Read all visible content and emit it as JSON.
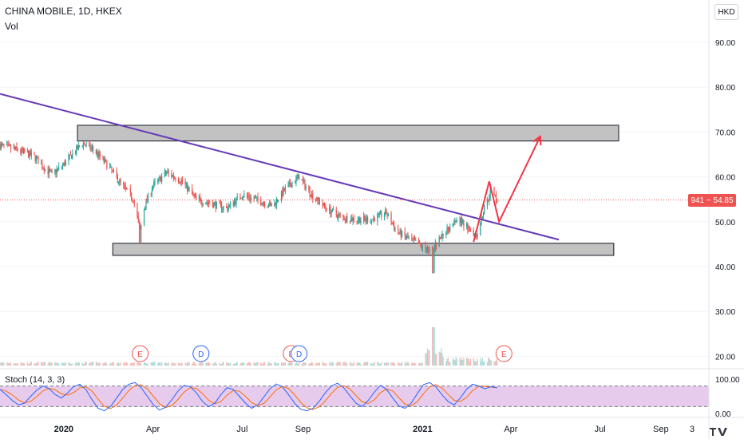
{
  "header": {
    "symbol_line": "CHINA MOBILE, 1D, HKEX",
    "volume_label": "Vol",
    "currency_button": "HKD",
    "indicator_label": "Stoch (14, 3, 3)"
  },
  "price_badge": {
    "text": "941 − 54.85",
    "color": "#ef5350"
  },
  "colors": {
    "up": "#26a69a",
    "down": "#ef5350",
    "trendline": "#673ab7",
    "projection": "#f23645",
    "zone_fill": "#c2c2c2",
    "stoch_k": "#2962ff",
    "stoch_d": "#ff6d00",
    "stoch_band": "#e1bee7"
  },
  "chart_data": {
    "type": "candlestick",
    "symbol": "CHINA MOBILE",
    "interval": "1D",
    "exchange": "HKEX",
    "currency": "HKD",
    "last_price": 54.85,
    "price_axis": {
      "ticks": [
        90,
        80,
        70,
        60,
        50,
        40,
        30,
        20
      ],
      "tick_labels": [
        "90.00",
        "80.00",
        "70.00",
        "60.00",
        "50.00",
        "40.00",
        "30.00",
        "20.00"
      ]
    },
    "time_axis": {
      "labels": [
        "2020",
        "Apr",
        "Jul",
        "Sep",
        "2021",
        "Apr",
        "Jul",
        "Sep",
        "3"
      ],
      "dates": [
        "2020-01-01",
        "2020-04-01",
        "2020-07-01",
        "2020-09-01",
        "2021-01-01",
        "2021-04-01",
        "2021-07-01",
        "2021-09-01",
        "2021-10-03"
      ]
    },
    "price_path": [
      [
        "2019-10-28",
        67.0
      ],
      [
        "2019-11-15",
        66.0
      ],
      [
        "2019-12-02",
        64.5
      ],
      [
        "2019-12-12",
        62.0
      ],
      [
        "2019-12-20",
        60.5
      ],
      [
        "2020-01-02",
        63.0
      ],
      [
        "2020-01-10",
        65.0
      ],
      [
        "2020-01-20",
        67.5
      ],
      [
        "2020-02-01",
        66.0
      ],
      [
        "2020-02-15",
        62.5
      ],
      [
        "2020-03-01",
        58.0
      ],
      [
        "2020-03-12",
        55.0
      ],
      [
        "2020-03-19",
        48.0
      ],
      [
        "2020-03-24",
        54.0
      ],
      [
        "2020-04-01",
        58.0
      ],
      [
        "2020-04-15",
        61.0
      ],
      [
        "2020-05-01",
        59.0
      ],
      [
        "2020-05-15",
        55.0
      ],
      [
        "2020-06-01",
        54.0
      ],
      [
        "2020-06-15",
        53.0
      ],
      [
        "2020-07-01",
        56.0
      ],
      [
        "2020-07-15",
        55.0
      ],
      [
        "2020-08-01",
        53.5
      ],
      [
        "2020-08-15",
        57.5
      ],
      [
        "2020-08-28",
        60.0
      ],
      [
        "2020-09-10",
        56.0
      ],
      [
        "2020-09-25",
        53.0
      ],
      [
        "2020-10-10",
        51.0
      ],
      [
        "2020-10-25",
        50.5
      ],
      [
        "2020-11-10",
        50.5
      ],
      [
        "2020-11-25",
        52.0
      ],
      [
        "2020-12-05",
        48.0
      ],
      [
        "2020-12-15",
        46.5
      ],
      [
        "2020-12-28",
        45.0
      ],
      [
        "2021-01-05",
        43.5
      ],
      [
        "2021-01-12",
        44.0
      ],
      [
        "2021-01-18",
        46.0
      ],
      [
        "2021-01-25",
        48.0
      ],
      [
        "2021-02-05",
        51.0
      ],
      [
        "2021-02-15",
        49.0
      ],
      [
        "2021-02-25",
        47.0
      ],
      [
        "2021-03-05",
        53.0
      ],
      [
        "2021-03-12",
        57.0
      ],
      [
        "2021-03-18",
        54.85
      ]
    ],
    "volume_spike_date": "2021-01-12",
    "earnings_markers": [
      {
        "label": "E",
        "date": "2020-03-19"
      },
      {
        "label": "E",
        "date": "2020-08-20"
      },
      {
        "label": "E",
        "date": "2021-03-25"
      }
    ],
    "dividend_markers": [
      {
        "label": "D",
        "date": "2020-05-20"
      },
      {
        "label": "D",
        "date": "2020-08-28"
      }
    ],
    "drawings": {
      "trendline": {
        "from": [
          "2019-10-28",
          78.5
        ],
        "to": [
          "2021-05-20",
          46.0
        ]
      },
      "resistance_zone": {
        "from": "2020-01-15",
        "to": "2021-07-20",
        "low": 68.0,
        "high": 71.5
      },
      "support_zone": {
        "from": "2020-02-20",
        "to": "2021-07-15",
        "low": 42.5,
        "high": 45.2
      },
      "projection_path": [
        [
          "2021-02-22",
          45.5
        ],
        [
          "2021-03-10",
          59.0
        ],
        [
          "2021-03-20",
          50.0
        ],
        [
          "2021-05-01",
          69.0
        ]
      ]
    },
    "stochastic": {
      "k": 14,
      "d": 3,
      "smooth": 3,
      "axis_labels": [
        "100.00",
        "0.00"
      ],
      "band": [
        20,
        80
      ],
      "values": [
        70,
        55,
        38,
        25,
        30,
        50,
        68,
        80,
        72,
        55,
        45,
        60,
        78,
        85,
        70,
        40,
        15,
        8,
        20,
        45,
        70,
        85,
        90,
        75,
        50,
        25,
        10,
        18,
        40,
        65,
        82,
        78,
        60,
        35,
        20,
        30,
        55,
        75,
        70,
        50,
        30,
        15,
        25,
        48,
        72,
        86,
        78,
        55,
        30,
        12,
        8,
        15,
        35,
        60,
        80,
        88,
        75,
        52,
        30,
        20,
        38,
        62,
        82,
        70,
        45,
        22,
        15,
        30,
        58,
        84,
        90,
        78,
        55,
        35,
        25,
        45,
        70,
        85,
        80,
        72,
        78,
        75
      ]
    }
  }
}
